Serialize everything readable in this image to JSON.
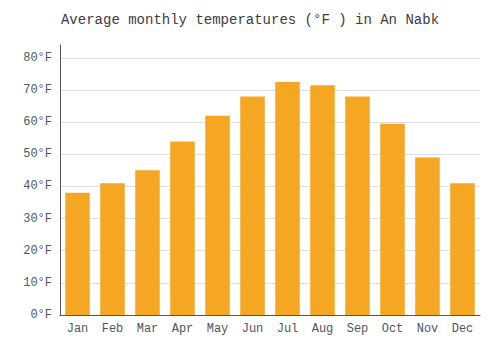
{
  "chart_data": {
    "type": "bar",
    "title": "Average monthly temperatures (°F ) in An Nabk",
    "categories": [
      "Jan",
      "Feb",
      "Mar",
      "Apr",
      "May",
      "Jun",
      "Jul",
      "Aug",
      "Sep",
      "Oct",
      "Nov",
      "Dec"
    ],
    "values": [
      38,
      41,
      45,
      54,
      62,
      68,
      72.5,
      71.5,
      68,
      59.5,
      49,
      41
    ],
    "color": "#F5A623",
    "ylim": [
      0,
      84
    ],
    "yticks": [
      {
        "value": 0,
        "label": "0°F"
      },
      {
        "value": 10,
        "label": "10°F"
      },
      {
        "value": 20,
        "label": "20°F"
      },
      {
        "value": 30,
        "label": "30°F"
      },
      {
        "value": 40,
        "label": "40°F"
      },
      {
        "value": 50,
        "label": "50°F"
      },
      {
        "value": 60,
        "label": "60°F"
      },
      {
        "value": 70,
        "label": "70°F"
      },
      {
        "value": 80,
        "label": "80°F"
      }
    ],
    "grid": true
  }
}
